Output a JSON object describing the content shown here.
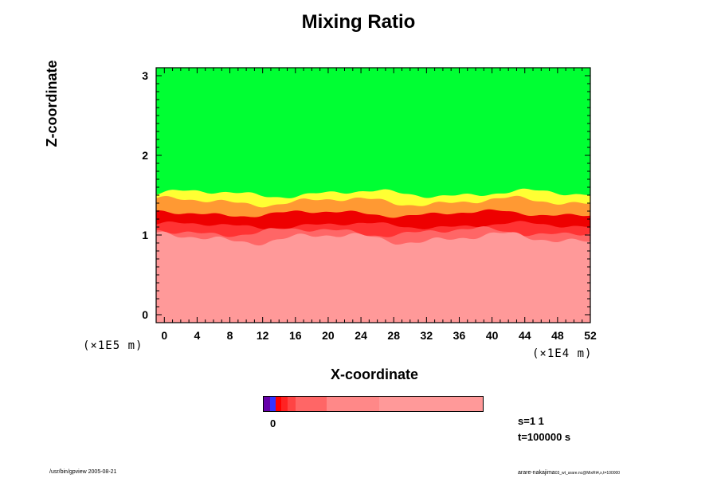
{
  "chart_data": {
    "type": "heatmap",
    "title": "Mixing Ratio",
    "xlabel": "X-coordinate",
    "ylabel": "Z-coordinate",
    "x_unit": "(×1E4 m)",
    "y_unit": "(×1E5 m)",
    "xlim": [
      -1,
      52
    ],
    "ylim": [
      -0.1,
      3.1
    ],
    "x_ticks": [
      0,
      4,
      8,
      12,
      16,
      20,
      24,
      28,
      32,
      36,
      40,
      44,
      48,
      52
    ],
    "y_ticks": [
      0,
      1,
      2,
      3
    ],
    "colors": {
      "top": "#00ff33",
      "yellow": "#ffff33",
      "orange": "#ff9933",
      "red_dark": "#ee0000",
      "red_mid": "#ff3333",
      "red_light": "#ff6666",
      "bottom": "#ff9999"
    },
    "colorbar": {
      "label": "0",
      "colors": [
        "#6600aa",
        "#3333ff",
        "#ff0000",
        "#ff2222",
        "#ff4444",
        "#ff6666",
        "#ff8888",
        "#ff9999"
      ]
    }
  },
  "info": {
    "scale": "s=1 1",
    "time": "t=100000 s"
  },
  "footer": {
    "left": "/usr/bin/gpview 2005-08-21",
    "right_main": "arare-nakajima",
    "right_sub": "03_wt_arare.nc@MixRt4,x,t=100000"
  }
}
